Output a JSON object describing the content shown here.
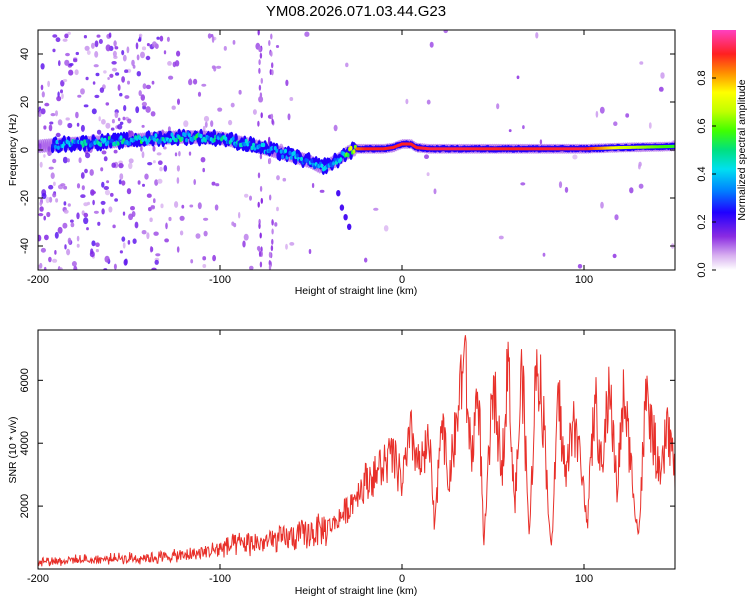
{
  "title": "YM08.2026.071.03.44.G23",
  "chart_data": [
    {
      "type": "heatmap",
      "xlabel": "Height of straight line (km)",
      "ylabel": "Frequency (Hz)",
      "xlim": [
        -200,
        150
      ],
      "ylim": [
        -50,
        50
      ],
      "xticks": [
        -200,
        -100,
        0,
        100
      ],
      "yticks": [
        -40,
        -20,
        0,
        20,
        40
      ],
      "colorbar": {
        "label": "Normalized spectral amplitude",
        "range": [
          0,
          1
        ],
        "ticks": [
          0.0,
          0.2,
          0.4,
          0.6,
          0.8
        ],
        "colors": [
          "#ffffff",
          "#d8b0f0",
          "#8a2be2",
          "#2000ff",
          "#0080ff",
          "#00e0f0",
          "#00e080",
          "#40ff00",
          "#c0ff00",
          "#ffff00",
          "#ff9000",
          "#ff2020",
          "#ff40c0"
        ]
      },
      "ridge": {
        "description_points_x": [
          -200,
          -185,
          -160,
          -140,
          -120,
          -100,
          -85,
          -70,
          -60,
          -50,
          -45,
          -40,
          -35,
          -30,
          -25,
          -20,
          -10,
          -5,
          0,
          5,
          8,
          15,
          30,
          60,
          100,
          120,
          150
        ],
        "frequency_hz": [
          1.5,
          2.5,
          3.5,
          4.5,
          5.5,
          5,
          2.5,
          -0.5,
          -2.5,
          -5,
          -7,
          -6,
          -4,
          -1,
          0.5,
          0.5,
          0.5,
          1,
          2.5,
          2.5,
          1.0,
          0.5,
          0.5,
          0.5,
          0.5,
          1.0,
          1.5
        ],
        "amplitude": [
          0.35,
          0.45,
          0.5,
          0.55,
          0.55,
          0.5,
          0.45,
          0.4,
          0.45,
          0.45,
          0.4,
          0.45,
          0.5,
          0.75,
          0.85,
          0.9,
          0.9,
          0.9,
          0.9,
          0.9,
          0.9,
          0.92,
          0.92,
          0.9,
          0.92,
          0.7,
          0.55
        ]
      }
    },
    {
      "type": "line",
      "xlabel": "Height of straight line (km)",
      "ylabel": "SNR (10 * v/v)",
      "xlim": [
        -200,
        150
      ],
      "ylim": [
        0,
        7600
      ],
      "xticks": [
        -200,
        -100,
        0,
        100
      ],
      "yticks": [
        2000,
        4000,
        6000
      ],
      "color": "#e8302a",
      "series": [
        {
          "name": "SNR",
          "x": [
            -200,
            -180,
            -160,
            -140,
            -120,
            -110,
            -100,
            -90,
            -80,
            -70,
            -60,
            -50,
            -40,
            -35,
            -30,
            -25,
            -20,
            -15,
            -10,
            -5,
            0,
            5,
            10,
            15,
            18,
            22,
            25,
            30,
            34,
            38,
            42,
            45,
            50,
            55,
            58,
            62,
            66,
            70,
            74,
            78,
            82,
            86,
            90,
            94,
            98,
            102,
            106,
            110,
            114,
            118,
            122,
            126,
            130,
            134,
            138,
            142,
            146,
            150
          ],
          "y": [
            250,
            280,
            320,
            360,
            420,
            520,
            650,
            780,
            820,
            900,
            1000,
            1150,
            1300,
            1600,
            1900,
            2400,
            2800,
            3000,
            3300,
            3600,
            2800,
            4200,
            3200,
            4000,
            1200,
            5400,
            2600,
            4500,
            7000,
            3500,
            5800,
            700,
            5800,
            3200,
            6800,
            2000,
            6400,
            900,
            7000,
            4600,
            500,
            5500,
            2800,
            4900,
            3400,
            1600,
            5400,
            3000,
            6100,
            2500,
            5600,
            3200,
            1000,
            5400,
            4200,
            2700,
            4700,
            3000
          ]
        }
      ]
    }
  ]
}
